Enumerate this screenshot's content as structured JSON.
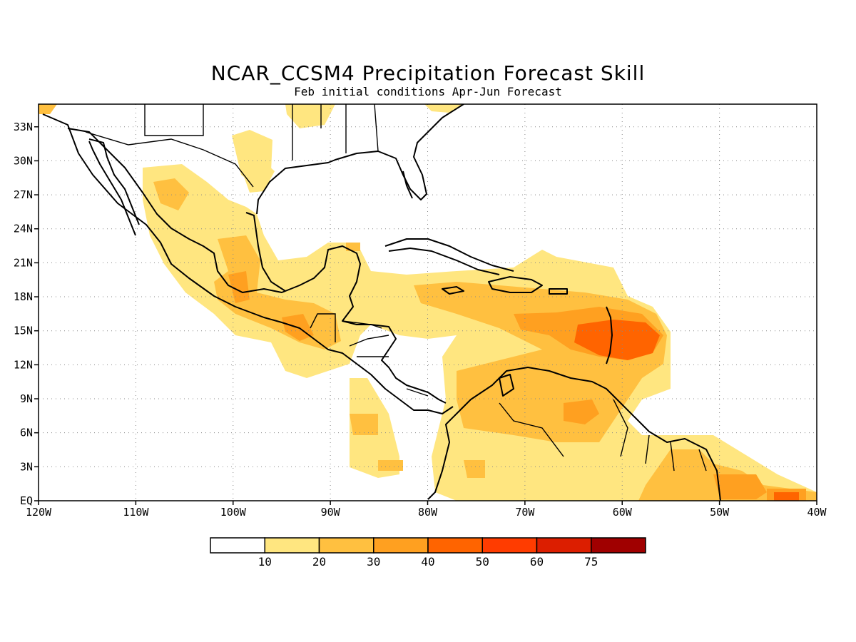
{
  "title": "NCAR_CCSM4 Precipitation Forecast Skill",
  "subtitle": "Feb initial conditions  Apr-Jun Forecast",
  "lon_labels": [
    "120W",
    "110W",
    "100W",
    "90W",
    "80W",
    "70W",
    "60W",
    "50W",
    "40W"
  ],
  "lat_labels": [
    "EQ",
    "3N",
    "6N",
    "9N",
    "12N",
    "15N",
    "18N",
    "21N",
    "24N",
    "27N",
    "30N",
    "33N"
  ],
  "colorbar": {
    "labels": [
      "10",
      "20",
      "30",
      "40",
      "50",
      "60",
      "75"
    ],
    "colors": [
      "#ffffff",
      "#ffe680",
      "#ffc040",
      "#ffa020",
      "#ff6400",
      "#ff3c00",
      "#dc1e00",
      "#a00000"
    ]
  },
  "map_extent": {
    "lon_min": -120,
    "lon_max": -40,
    "lat_min": 0,
    "lat_max": 35
  }
}
